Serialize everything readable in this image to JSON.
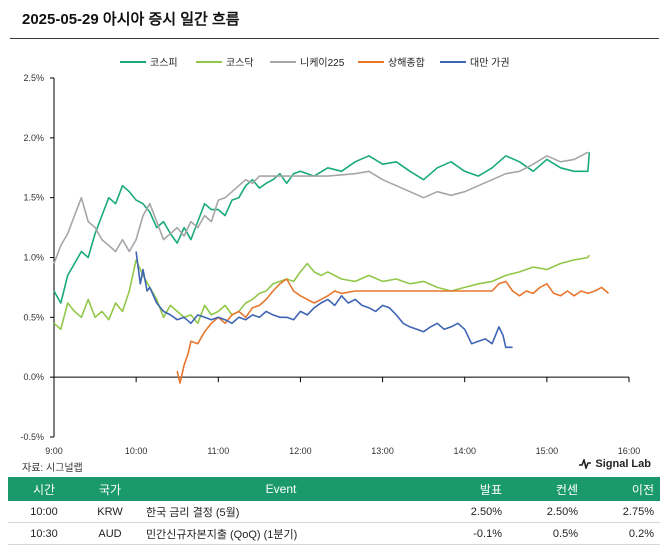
{
  "title": "2025-05-29 아시아 증시 일간 흐름",
  "source": "자료: 시그널랩",
  "brand": "Signal Lab",
  "colors": {
    "kospi": "#1aaa7a",
    "kosdaq": "#92c84a",
    "nikkei": "#a6a6a6",
    "shanghai": "#e8772e",
    "taiwan": "#3e64b4",
    "header": "#1a9a6c"
  },
  "chart_data": {
    "type": "line",
    "x_ticks": [
      "9:00",
      "10:00",
      "11:00",
      "12:00",
      "13:00",
      "14:00",
      "15:00",
      "16:00"
    ],
    "y_ticks": [
      "2.5%",
      "2.0%",
      "1.5%",
      "1.0%",
      "0.5%",
      "0.0%",
      "-0.5%"
    ],
    "ylim": [
      -0.5,
      2.5
    ],
    "xlim": [
      "9:00",
      "16:00"
    ],
    "legend_position": "top",
    "grid": false,
    "series": [
      {
        "name": "코스피",
        "color": "#1aaa7a",
        "points": [
          [
            "9:00",
            0.72
          ],
          [
            "9:05",
            0.62
          ],
          [
            "9:10",
            0.85
          ],
          [
            "9:15",
            0.95
          ],
          [
            "9:20",
            1.05
          ],
          [
            "9:25",
            1.0
          ],
          [
            "9:30",
            1.2
          ],
          [
            "9:35",
            1.35
          ],
          [
            "9:40",
            1.5
          ],
          [
            "9:45",
            1.45
          ],
          [
            "9:50",
            1.6
          ],
          [
            "9:55",
            1.55
          ],
          [
            "10:00",
            1.48
          ],
          [
            "10:05",
            1.45
          ],
          [
            "10:10",
            1.38
          ],
          [
            "10:15",
            1.25
          ],
          [
            "10:20",
            1.3
          ],
          [
            "10:25",
            1.2
          ],
          [
            "10:30",
            1.12
          ],
          [
            "10:35",
            1.25
          ],
          [
            "10:40",
            1.15
          ],
          [
            "10:45",
            1.3
          ],
          [
            "10:50",
            1.45
          ],
          [
            "10:55",
            1.4
          ],
          [
            "11:00",
            1.4
          ],
          [
            "11:05",
            1.35
          ],
          [
            "11:10",
            1.48
          ],
          [
            "11:15",
            1.5
          ],
          [
            "11:20",
            1.6
          ],
          [
            "11:25",
            1.65
          ],
          [
            "11:30",
            1.58
          ],
          [
            "11:35",
            1.62
          ],
          [
            "11:40",
            1.65
          ],
          [
            "11:45",
            1.7
          ],
          [
            "11:50",
            1.62
          ],
          [
            "11:55",
            1.7
          ],
          [
            "12:00",
            1.72
          ],
          [
            "12:10",
            1.68
          ],
          [
            "12:20",
            1.75
          ],
          [
            "12:30",
            1.72
          ],
          [
            "12:40",
            1.8
          ],
          [
            "12:50",
            1.85
          ],
          [
            "13:00",
            1.78
          ],
          [
            "13:10",
            1.8
          ],
          [
            "13:20",
            1.72
          ],
          [
            "13:30",
            1.65
          ],
          [
            "13:40",
            1.75
          ],
          [
            "13:50",
            1.8
          ],
          [
            "14:00",
            1.72
          ],
          [
            "14:10",
            1.68
          ],
          [
            "14:20",
            1.75
          ],
          [
            "14:30",
            1.85
          ],
          [
            "14:40",
            1.8
          ],
          [
            "14:50",
            1.72
          ],
          [
            "15:00",
            1.82
          ],
          [
            "15:10",
            1.75
          ],
          [
            "15:20",
            1.72
          ],
          [
            "15:30",
            1.72
          ],
          [
            "15:31",
            1.88
          ]
        ]
      },
      {
        "name": "코스닥",
        "color": "#92c84a",
        "points": [
          [
            "9:00",
            0.45
          ],
          [
            "9:05",
            0.4
          ],
          [
            "9:10",
            0.62
          ],
          [
            "9:15",
            0.55
          ],
          [
            "9:20",
            0.5
          ],
          [
            "9:25",
            0.65
          ],
          [
            "9:30",
            0.5
          ],
          [
            "9:35",
            0.55
          ],
          [
            "9:40",
            0.48
          ],
          [
            "9:45",
            0.62
          ],
          [
            "9:50",
            0.55
          ],
          [
            "9:55",
            0.72
          ],
          [
            "10:00",
            0.98
          ],
          [
            "10:05",
            0.85
          ],
          [
            "10:10",
            0.75
          ],
          [
            "10:15",
            0.65
          ],
          [
            "10:20",
            0.5
          ],
          [
            "10:25",
            0.6
          ],
          [
            "10:30",
            0.55
          ],
          [
            "10:35",
            0.5
          ],
          [
            "10:40",
            0.52
          ],
          [
            "10:45",
            0.45
          ],
          [
            "10:50",
            0.6
          ],
          [
            "10:55",
            0.52
          ],
          [
            "11:00",
            0.55
          ],
          [
            "11:05",
            0.6
          ],
          [
            "11:10",
            0.52
          ],
          [
            "11:15",
            0.55
          ],
          [
            "11:20",
            0.62
          ],
          [
            "11:25",
            0.65
          ],
          [
            "11:30",
            0.7
          ],
          [
            "11:35",
            0.72
          ],
          [
            "11:40",
            0.78
          ],
          [
            "11:45",
            0.8
          ],
          [
            "11:50",
            0.82
          ],
          [
            "11:55",
            0.8
          ],
          [
            "12:00",
            0.88
          ],
          [
            "12:05",
            0.95
          ],
          [
            "12:10",
            0.88
          ],
          [
            "12:15",
            0.85
          ],
          [
            "12:20",
            0.88
          ],
          [
            "12:30",
            0.82
          ],
          [
            "12:40",
            0.8
          ],
          [
            "12:50",
            0.85
          ],
          [
            "13:00",
            0.8
          ],
          [
            "13:10",
            0.82
          ],
          [
            "13:20",
            0.78
          ],
          [
            "13:30",
            0.8
          ],
          [
            "13:40",
            0.75
          ],
          [
            "13:50",
            0.72
          ],
          [
            "14:00",
            0.75
          ],
          [
            "14:10",
            0.78
          ],
          [
            "14:20",
            0.8
          ],
          [
            "14:30",
            0.85
          ],
          [
            "14:40",
            0.88
          ],
          [
            "14:50",
            0.92
          ],
          [
            "15:00",
            0.9
          ],
          [
            "15:10",
            0.95
          ],
          [
            "15:20",
            0.98
          ],
          [
            "15:30",
            1.0
          ],
          [
            "15:31",
            1.02
          ]
        ]
      },
      {
        "name": "니케이225",
        "color": "#a6a6a6",
        "points": [
          [
            "9:00",
            0.95
          ],
          [
            "9:05",
            1.1
          ],
          [
            "9:10",
            1.2
          ],
          [
            "9:15",
            1.35
          ],
          [
            "9:20",
            1.5
          ],
          [
            "9:25",
            1.3
          ],
          [
            "9:30",
            1.25
          ],
          [
            "9:35",
            1.15
          ],
          [
            "9:40",
            1.1
          ],
          [
            "9:45",
            1.05
          ],
          [
            "9:50",
            1.15
          ],
          [
            "9:55",
            1.05
          ],
          [
            "10:00",
            1.15
          ],
          [
            "10:05",
            1.35
          ],
          [
            "10:10",
            1.45
          ],
          [
            "10:15",
            1.3
          ],
          [
            "10:20",
            1.15
          ],
          [
            "10:25",
            1.2
          ],
          [
            "10:30",
            1.25
          ],
          [
            "10:35",
            1.18
          ],
          [
            "10:40",
            1.3
          ],
          [
            "10:45",
            1.25
          ],
          [
            "10:50",
            1.35
          ],
          [
            "10:55",
            1.3
          ],
          [
            "11:00",
            1.48
          ],
          [
            "11:05",
            1.5
          ],
          [
            "11:10",
            1.55
          ],
          [
            "11:15",
            1.6
          ],
          [
            "11:20",
            1.65
          ],
          [
            "11:25",
            1.62
          ],
          [
            "11:30",
            1.68
          ],
          [
            "11:40",
            1.68
          ],
          [
            "12:00",
            1.68
          ],
          [
            "12:20",
            1.68
          ],
          [
            "12:40",
            1.7
          ],
          [
            "12:50",
            1.72
          ],
          [
            "13:00",
            1.65
          ],
          [
            "13:10",
            1.6
          ],
          [
            "13:20",
            1.55
          ],
          [
            "13:30",
            1.5
          ],
          [
            "13:40",
            1.55
          ],
          [
            "13:50",
            1.52
          ],
          [
            "14:00",
            1.55
          ],
          [
            "14:10",
            1.6
          ],
          [
            "14:20",
            1.65
          ],
          [
            "14:30",
            1.7
          ],
          [
            "14:40",
            1.72
          ],
          [
            "14:50",
            1.78
          ],
          [
            "15:00",
            1.85
          ],
          [
            "15:10",
            1.8
          ],
          [
            "15:20",
            1.82
          ],
          [
            "15:30",
            1.88
          ]
        ]
      },
      {
        "name": "상해종합",
        "color": "#e8772e",
        "points": [
          [
            "10:30",
            0.05
          ],
          [
            "10:32",
            -0.05
          ],
          [
            "10:35",
            0.1
          ],
          [
            "10:38",
            0.2
          ],
          [
            "10:40",
            0.3
          ],
          [
            "10:45",
            0.28
          ],
          [
            "10:50",
            0.38
          ],
          [
            "10:55",
            0.45
          ],
          [
            "11:00",
            0.5
          ],
          [
            "11:05",
            0.45
          ],
          [
            "11:10",
            0.52
          ],
          [
            "11:15",
            0.55
          ],
          [
            "11:20",
            0.5
          ],
          [
            "11:25",
            0.58
          ],
          [
            "11:30",
            0.6
          ],
          [
            "11:35",
            0.65
          ],
          [
            "11:40",
            0.72
          ],
          [
            "11:45",
            0.78
          ],
          [
            "11:50",
            0.82
          ],
          [
            "11:55",
            0.72
          ],
          [
            "12:00",
            0.68
          ],
          [
            "12:05",
            0.65
          ],
          [
            "12:10",
            0.62
          ],
          [
            "12:15",
            0.65
          ],
          [
            "12:20",
            0.68
          ],
          [
            "12:25",
            0.72
          ],
          [
            "12:30",
            0.7
          ],
          [
            "12:40",
            0.72
          ],
          [
            "12:50",
            0.72
          ],
          [
            "13:00",
            0.72
          ],
          [
            "13:30",
            0.72
          ],
          [
            "14:00",
            0.72
          ],
          [
            "14:10",
            0.72
          ],
          [
            "14:20",
            0.72
          ],
          [
            "14:25",
            0.78
          ],
          [
            "14:30",
            0.8
          ],
          [
            "14:35",
            0.72
          ],
          [
            "14:40",
            0.68
          ],
          [
            "14:45",
            0.72
          ],
          [
            "14:50",
            0.7
          ],
          [
            "14:55",
            0.75
          ],
          [
            "15:00",
            0.78
          ],
          [
            "15:05",
            0.7
          ],
          [
            "15:10",
            0.68
          ],
          [
            "15:15",
            0.72
          ],
          [
            "15:20",
            0.68
          ],
          [
            "15:25",
            0.72
          ],
          [
            "15:30",
            0.7
          ],
          [
            "15:35",
            0.72
          ],
          [
            "15:40",
            0.75
          ],
          [
            "15:45",
            0.7
          ]
        ]
      },
      {
        "name": "대만 가권",
        "color": "#3e64b4",
        "points": [
          [
            "10:00",
            1.05
          ],
          [
            "10:03",
            0.78
          ],
          [
            "10:05",
            0.9
          ],
          [
            "10:08",
            0.72
          ],
          [
            "10:10",
            0.75
          ],
          [
            "10:15",
            0.62
          ],
          [
            "10:20",
            0.55
          ],
          [
            "10:25",
            0.52
          ],
          [
            "10:30",
            0.48
          ],
          [
            "10:35",
            0.5
          ],
          [
            "10:40",
            0.45
          ],
          [
            "10:45",
            0.52
          ],
          [
            "10:50",
            0.5
          ],
          [
            "10:55",
            0.48
          ],
          [
            "11:00",
            0.5
          ],
          [
            "11:05",
            0.48
          ],
          [
            "11:10",
            0.45
          ],
          [
            "11:15",
            0.5
          ],
          [
            "11:20",
            0.48
          ],
          [
            "11:25",
            0.52
          ],
          [
            "11:30",
            0.5
          ],
          [
            "11:35",
            0.55
          ],
          [
            "11:40",
            0.52
          ],
          [
            "11:45",
            0.5
          ],
          [
            "11:50",
            0.5
          ],
          [
            "11:55",
            0.48
          ],
          [
            "12:00",
            0.55
          ],
          [
            "12:05",
            0.52
          ],
          [
            "12:10",
            0.58
          ],
          [
            "12:15",
            0.62
          ],
          [
            "12:20",
            0.65
          ],
          [
            "12:25",
            0.6
          ],
          [
            "12:30",
            0.68
          ],
          [
            "12:35",
            0.62
          ],
          [
            "12:40",
            0.65
          ],
          [
            "12:45",
            0.6
          ],
          [
            "12:50",
            0.58
          ],
          [
            "12:55",
            0.55
          ],
          [
            "13:00",
            0.6
          ],
          [
            "13:05",
            0.58
          ],
          [
            "13:10",
            0.52
          ],
          [
            "13:15",
            0.45
          ],
          [
            "13:20",
            0.42
          ],
          [
            "13:25",
            0.4
          ],
          [
            "13:30",
            0.38
          ],
          [
            "13:35",
            0.42
          ],
          [
            "13:40",
            0.45
          ],
          [
            "13:45",
            0.4
          ],
          [
            "13:50",
            0.42
          ],
          [
            "13:55",
            0.45
          ],
          [
            "14:00",
            0.4
          ],
          [
            "14:05",
            0.28
          ],
          [
            "14:10",
            0.3
          ],
          [
            "14:15",
            0.32
          ],
          [
            "14:20",
            0.28
          ],
          [
            "14:25",
            0.42
          ],
          [
            "14:28",
            0.35
          ],
          [
            "14:30",
            0.25
          ],
          [
            "14:35",
            0.25
          ]
        ]
      }
    ]
  },
  "table": {
    "headers": [
      "시간",
      "국가",
      "Event",
      "발표",
      "컨센",
      "이전"
    ],
    "rows": [
      [
        "10:00",
        "KRW",
        "한국 금리 결정 (5월)",
        "2.50%",
        "2.50%",
        "2.75%"
      ],
      [
        "10:30",
        "AUD",
        "민간신규자본지출 (QoQ) (1분기)",
        "-0.1%",
        "0.5%",
        "0.2%"
      ]
    ]
  }
}
